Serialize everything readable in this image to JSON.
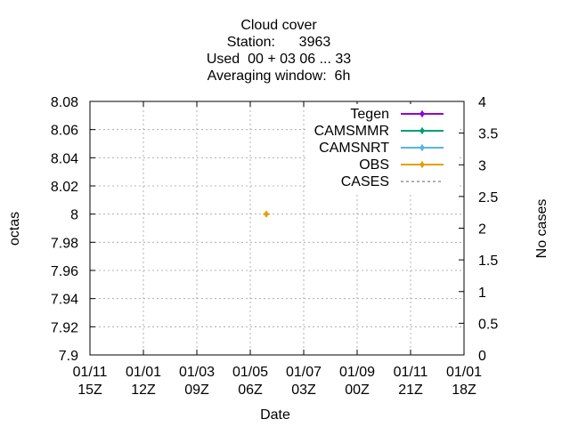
{
  "chart_data": {
    "type": "line",
    "title": [
      "Cloud cover",
      "Station:      3963",
      "Used  00 + 03 06 ... 33",
      "Averaging window:  6h"
    ],
    "xlabel": "Date",
    "ylabel": "octas",
    "y2label": "No cases",
    "ylim": [
      7.9,
      8.08
    ],
    "y2lim": [
      0,
      4
    ],
    "yticks": [
      "7.9",
      "7.92",
      "7.94",
      "7.96",
      "7.98",
      "8",
      "8.02",
      "8.04",
      "8.06",
      "8.08"
    ],
    "y2ticks": [
      "0",
      "0.5",
      "1",
      "1.5",
      "2",
      "2.5",
      "3",
      "3.5",
      "4"
    ],
    "xticks": [
      {
        "top": "01/11",
        "bottom": "15Z"
      },
      {
        "top": "01/01",
        "bottom": "12Z"
      },
      {
        "top": "01/03",
        "bottom": "09Z"
      },
      {
        "top": "01/05",
        "bottom": "06Z"
      },
      {
        "top": "01/07",
        "bottom": "03Z"
      },
      {
        "top": "01/09",
        "bottom": "00Z"
      },
      {
        "top": "01/11",
        "bottom": "21Z"
      },
      {
        "top": "01/01",
        "bottom": "18Z"
      }
    ],
    "grid": true,
    "legend_position": "top-right",
    "series": [
      {
        "name": "Tegen",
        "color": "#9400d3",
        "style": "line-points",
        "points": []
      },
      {
        "name": "CAMSMMR",
        "color": "#009e73",
        "style": "line-points",
        "points": []
      },
      {
        "name": "CAMSNRT",
        "color": "#56b4e9",
        "style": "line-points",
        "points": []
      },
      {
        "name": "OBS",
        "color": "#e69f00",
        "style": "line-points",
        "points": [
          {
            "x_index": 3.3,
            "y": 8.0
          }
        ]
      },
      {
        "name": "CASES",
        "color": "#808080",
        "style": "dashed",
        "points": []
      }
    ]
  }
}
